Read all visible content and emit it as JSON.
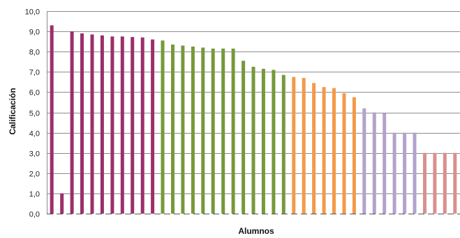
{
  "chart_data": {
    "type": "bar",
    "xlabel": "Alumnos",
    "ylabel": "Calificación",
    "ylim": [
      0,
      10
    ],
    "y_ticks": [
      "0,0",
      "1,0",
      "2,0",
      "3,0",
      "4,0",
      "5,0",
      "6,0",
      "7,0",
      "8,0",
      "9,0",
      "10,0"
    ],
    "grid": true,
    "legend": "none",
    "color_groups": [
      {
        "color": "#9b2f6b",
        "values": [
          9.3,
          1.0,
          9.0,
          8.9,
          8.85,
          8.8,
          8.75,
          8.75,
          8.72,
          8.7,
          8.6
        ]
      },
      {
        "color": "#76993a",
        "values": [
          8.55,
          8.35,
          8.3,
          8.25,
          8.2,
          8.15,
          8.15,
          8.15,
          7.55,
          7.25,
          7.15,
          7.1,
          6.85
        ]
      },
      {
        "color": "#f39a4a",
        "values": [
          6.75,
          6.7,
          6.45,
          6.25,
          6.2,
          5.95,
          5.75
        ]
      },
      {
        "color": "#b3a3cc",
        "values": [
          5.2,
          5.0,
          4.95,
          4.0,
          4.0,
          4.0
        ]
      },
      {
        "color": "#d9908e",
        "values": [
          3.0,
          3.0,
          3.0,
          3.0
        ]
      }
    ]
  }
}
